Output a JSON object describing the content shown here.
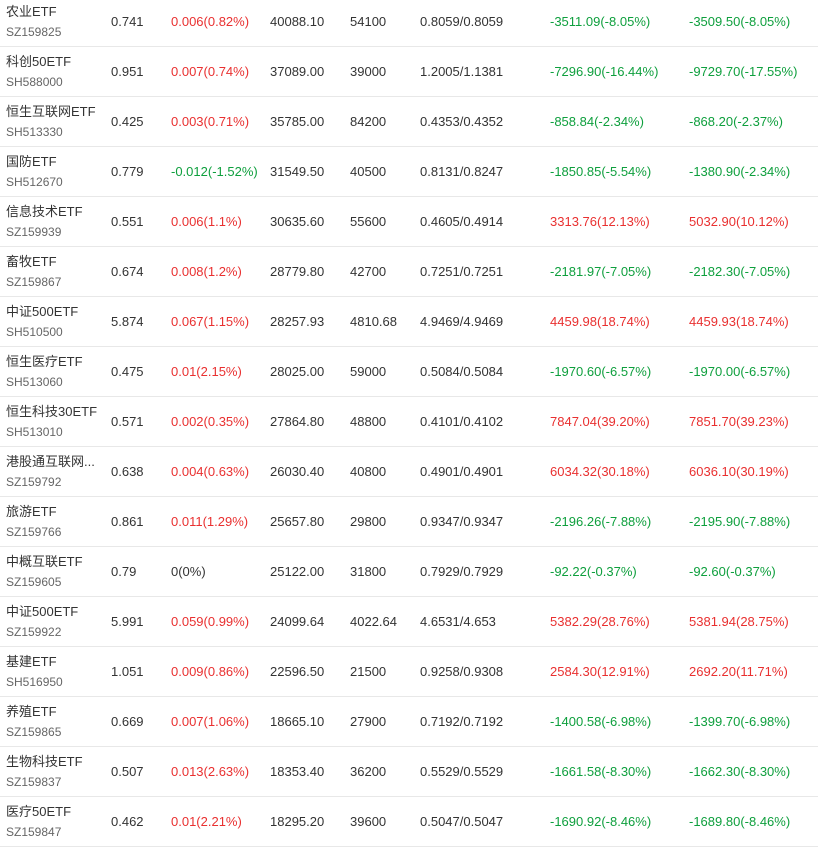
{
  "colors": {
    "up": "#e93030",
    "down": "#0e9f3d",
    "flat": "#333333"
  },
  "rows": [
    {
      "name": "农业ETF",
      "code": "SZ159825",
      "price": "0.741",
      "change": "0.006(0.82%)",
      "change_dir": "up",
      "amount": "40088.10",
      "volume": "54100",
      "bid_ask": "0.8059/0.8059",
      "pl1": "-3511.09(-8.05%)",
      "pl1_dir": "down",
      "pl2": "-3509.50(-8.05%)",
      "pl2_dir": "down"
    },
    {
      "name": "科创50ETF",
      "code": "SH588000",
      "price": "0.951",
      "change": "0.007(0.74%)",
      "change_dir": "up",
      "amount": "37089.00",
      "volume": "39000",
      "bid_ask": "1.2005/1.1381",
      "pl1": "-7296.90(-16.44%)",
      "pl1_dir": "down",
      "pl2": "-9729.70(-17.55%)",
      "pl2_dir": "down"
    },
    {
      "name": "恒生互联网ETF",
      "code": "SH513330",
      "price": "0.425",
      "change": "0.003(0.71%)",
      "change_dir": "up",
      "amount": "35785.00",
      "volume": "84200",
      "bid_ask": "0.4353/0.4352",
      "pl1": "-858.84(-2.34%)",
      "pl1_dir": "down",
      "pl2": "-868.20(-2.37%)",
      "pl2_dir": "down"
    },
    {
      "name": "国防ETF",
      "code": "SH512670",
      "price": "0.779",
      "change": "-0.012(-1.52%)",
      "change_dir": "down",
      "amount": "31549.50",
      "volume": "40500",
      "bid_ask": "0.8131/0.8247",
      "pl1": "-1850.85(-5.54%)",
      "pl1_dir": "down",
      "pl2": "-1380.90(-2.34%)",
      "pl2_dir": "down"
    },
    {
      "name": "信息技术ETF",
      "code": "SZ159939",
      "price": "0.551",
      "change": "0.006(1.1%)",
      "change_dir": "up",
      "amount": "30635.60",
      "volume": "55600",
      "bid_ask": "0.4605/0.4914",
      "pl1": "3313.76(12.13%)",
      "pl1_dir": "up",
      "pl2": "5032.90(10.12%)",
      "pl2_dir": "up"
    },
    {
      "name": "畜牧ETF",
      "code": "SZ159867",
      "price": "0.674",
      "change": "0.008(1.2%)",
      "change_dir": "up",
      "amount": "28779.80",
      "volume": "42700",
      "bid_ask": "0.7251/0.7251",
      "pl1": "-2181.97(-7.05%)",
      "pl1_dir": "down",
      "pl2": "-2182.30(-7.05%)",
      "pl2_dir": "down"
    },
    {
      "name": "中证500ETF",
      "code": "SH510500",
      "price": "5.874",
      "change": "0.067(1.15%)",
      "change_dir": "up",
      "amount": "28257.93",
      "volume": "4810.68",
      "bid_ask": "4.9469/4.9469",
      "pl1": "4459.98(18.74%)",
      "pl1_dir": "up",
      "pl2": "4459.93(18.74%)",
      "pl2_dir": "up"
    },
    {
      "name": "恒生医疗ETF",
      "code": "SH513060",
      "price": "0.475",
      "change": "0.01(2.15%)",
      "change_dir": "up",
      "amount": "28025.00",
      "volume": "59000",
      "bid_ask": "0.5084/0.5084",
      "pl1": "-1970.60(-6.57%)",
      "pl1_dir": "down",
      "pl2": "-1970.00(-6.57%)",
      "pl2_dir": "down"
    },
    {
      "name": "恒生科技30ETF",
      "code": "SH513010",
      "price": "0.571",
      "change": "0.002(0.35%)",
      "change_dir": "up",
      "amount": "27864.80",
      "volume": "48800",
      "bid_ask": "0.4101/0.4102",
      "pl1": "7847.04(39.20%)",
      "pl1_dir": "up",
      "pl2": "7851.70(39.23%)",
      "pl2_dir": "up"
    },
    {
      "name": "港股通互联网...",
      "code": "SZ159792",
      "price": "0.638",
      "change": "0.004(0.63%)",
      "change_dir": "up",
      "amount": "26030.40",
      "volume": "40800",
      "bid_ask": "0.4901/0.4901",
      "pl1": "6034.32(30.18%)",
      "pl1_dir": "up",
      "pl2": "6036.10(30.19%)",
      "pl2_dir": "up"
    },
    {
      "name": "旅游ETF",
      "code": "SZ159766",
      "price": "0.861",
      "change": "0.011(1.29%)",
      "change_dir": "up",
      "amount": "25657.80",
      "volume": "29800",
      "bid_ask": "0.9347/0.9347",
      "pl1": "-2196.26(-7.88%)",
      "pl1_dir": "down",
      "pl2": "-2195.90(-7.88%)",
      "pl2_dir": "down"
    },
    {
      "name": "中概互联ETF",
      "code": "SZ159605",
      "price": "0.79",
      "change": "0(0%)",
      "change_dir": "flat",
      "amount": "25122.00",
      "volume": "31800",
      "bid_ask": "0.7929/0.7929",
      "pl1": "-92.22(-0.37%)",
      "pl1_dir": "down",
      "pl2": "-92.60(-0.37%)",
      "pl2_dir": "down"
    },
    {
      "name": "中证500ETF",
      "code": "SZ159922",
      "price": "5.991",
      "change": "0.059(0.99%)",
      "change_dir": "up",
      "amount": "24099.64",
      "volume": "4022.64",
      "bid_ask": "4.6531/4.653",
      "pl1": "5382.29(28.76%)",
      "pl1_dir": "up",
      "pl2": "5381.94(28.75%)",
      "pl2_dir": "up"
    },
    {
      "name": "基建ETF",
      "code": "SH516950",
      "price": "1.051",
      "change": "0.009(0.86%)",
      "change_dir": "up",
      "amount": "22596.50",
      "volume": "21500",
      "bid_ask": "0.9258/0.9308",
      "pl1": "2584.30(12.91%)",
      "pl1_dir": "up",
      "pl2": "2692.20(11.71%)",
      "pl2_dir": "up"
    },
    {
      "name": "养殖ETF",
      "code": "SZ159865",
      "price": "0.669",
      "change": "0.007(1.06%)",
      "change_dir": "up",
      "amount": "18665.10",
      "volume": "27900",
      "bid_ask": "0.7192/0.7192",
      "pl1": "-1400.58(-6.98%)",
      "pl1_dir": "down",
      "pl2": "-1399.70(-6.98%)",
      "pl2_dir": "down"
    },
    {
      "name": "生物科技ETF",
      "code": "SZ159837",
      "price": "0.507",
      "change": "0.013(2.63%)",
      "change_dir": "up",
      "amount": "18353.40",
      "volume": "36200",
      "bid_ask": "0.5529/0.5529",
      "pl1": "-1661.58(-8.30%)",
      "pl1_dir": "down",
      "pl2": "-1662.30(-8.30%)",
      "pl2_dir": "down"
    },
    {
      "name": "医疗50ETF",
      "code": "SZ159847",
      "price": "0.462",
      "change": "0.01(2.21%)",
      "change_dir": "up",
      "amount": "18295.20",
      "volume": "39600",
      "bid_ask": "0.5047/0.5047",
      "pl1": "-1690.92(-8.46%)",
      "pl1_dir": "down",
      "pl2": "-1689.80(-8.46%)",
      "pl2_dir": "down"
    }
  ]
}
